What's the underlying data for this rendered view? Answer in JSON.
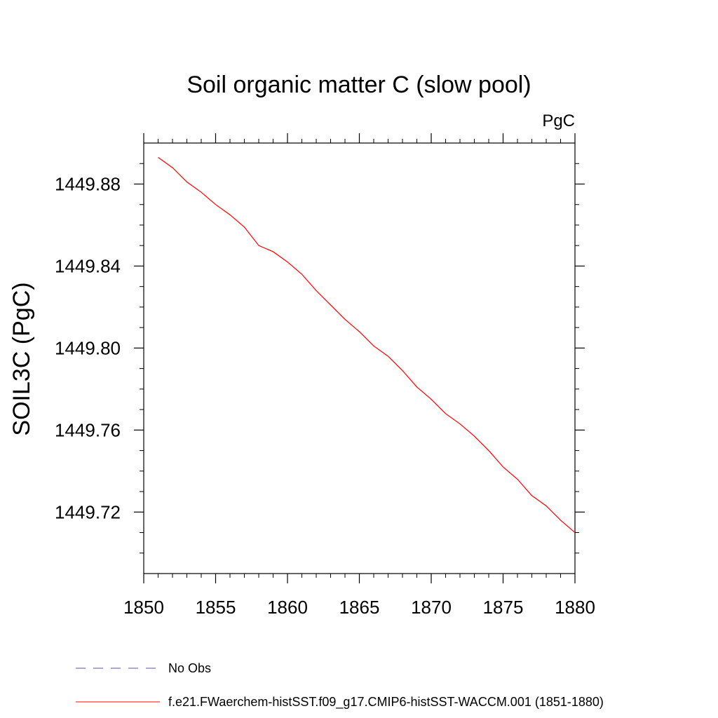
{
  "chart_data": {
    "type": "line",
    "title": "Soil organic matter C (slow pool)",
    "units_label": "PgC",
    "ylabel": "SOIL3C  (PgC)",
    "xlabel": "",
    "xlim": [
      1850,
      1880
    ],
    "ylim": [
      1449.69,
      1449.9
    ],
    "x_ticks": [
      1850,
      1855,
      1860,
      1865,
      1870,
      1875,
      1880
    ],
    "x_tick_labels": [
      "1850",
      "1855",
      "1860",
      "1865",
      "1870",
      "1875",
      "1880"
    ],
    "y_ticks": [
      1449.72,
      1449.76,
      1449.8,
      1449.84,
      1449.88
    ],
    "y_tick_labels": [
      "1449.72",
      "1449.76",
      "1449.80",
      "1449.84",
      "1449.88"
    ],
    "grid": false,
    "legend_position": "bottom",
    "series": [
      {
        "name": "f.e21.FWaerchem-histSST.f09_g17.CMIP6-histSST-WACCM.001 (1851-1880)",
        "color": "#ff0000",
        "style": "solid",
        "x": [
          1851,
          1852,
          1853,
          1854,
          1855,
          1856,
          1857,
          1858,
          1859,
          1860,
          1861,
          1862,
          1863,
          1864,
          1865,
          1866,
          1867,
          1868,
          1869,
          1870,
          1871,
          1872,
          1873,
          1874,
          1875,
          1876,
          1877,
          1878,
          1879,
          1880
        ],
        "y": [
          1449.893,
          1449.888,
          1449.881,
          1449.876,
          1449.87,
          1449.865,
          1449.859,
          1449.85,
          1449.847,
          1449.842,
          1449.836,
          1449.828,
          1449.821,
          1449.814,
          1449.808,
          1449.801,
          1449.796,
          1449.789,
          1449.781,
          1449.775,
          1449.768,
          1449.763,
          1449.757,
          1449.75,
          1449.742,
          1449.736,
          1449.728,
          1449.723,
          1449.716,
          1449.71
        ]
      }
    ],
    "legend": [
      {
        "label": "No Obs",
        "color": "#5a4fa8",
        "style": "dashed"
      },
      {
        "label": "f.e21.FWaerchem-histSST.f09_g17.CMIP6-histSST-WACCM.001 (1851-1880)",
        "color": "#ff0000",
        "style": "solid"
      }
    ]
  }
}
